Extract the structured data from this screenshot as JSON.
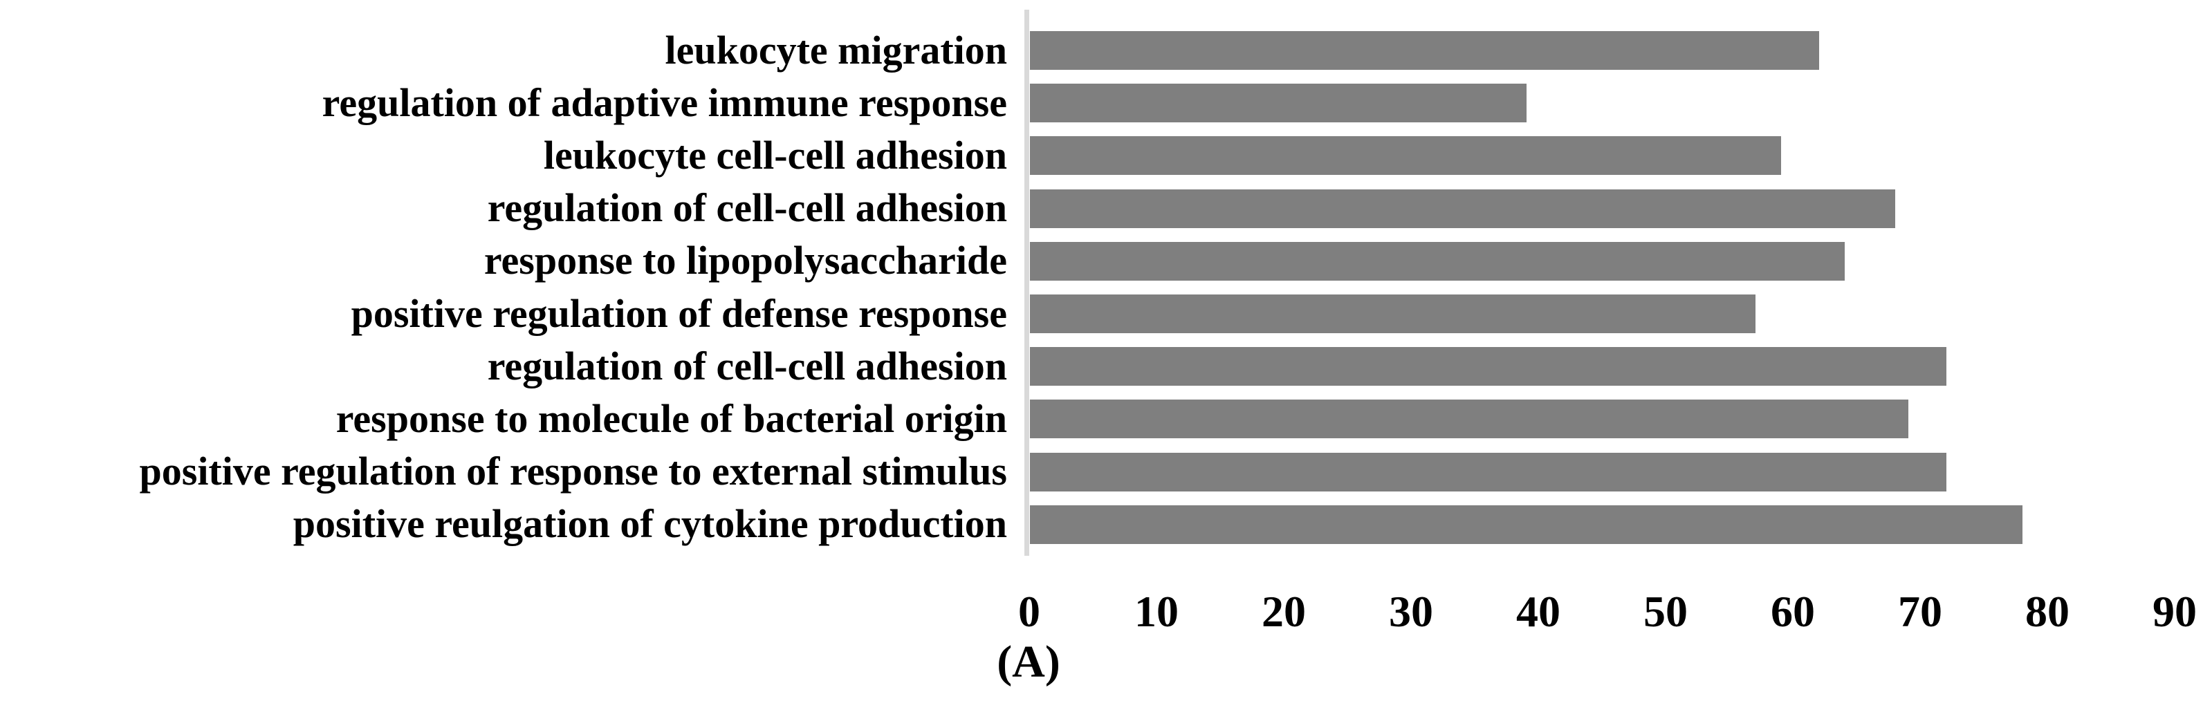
{
  "figure": {
    "caption": "(A)",
    "background": "#ffffff"
  },
  "chart_data": {
    "type": "bar",
    "orientation": "horizontal",
    "title": "",
    "xlabel": "",
    "ylabel": "",
    "categories": [
      "leukocyte migration",
      "regulation of adaptive immune response",
      "leukocyte cell-cell adhesion",
      "regulation of cell-cell adhesion",
      "response to lipopolysaccharide",
      "positive regulation of defense response",
      "regulation of cell-cell adhesion",
      "response to molecule of bacterial origin",
      "positive regulation of response to external stimulus",
      "positive reulgation of cytokine production"
    ],
    "values": [
      62,
      39,
      59,
      68,
      64,
      57,
      72,
      69,
      72,
      78
    ],
    "xlim": [
      0,
      90
    ],
    "xticks": [
      0,
      10,
      20,
      30,
      40,
      50,
      60,
      70,
      80,
      90
    ],
    "grid": false,
    "legend": false,
    "bar_color": "#7f7f7f",
    "axis_line_color": "#d9d9d9",
    "text_color": "#000000"
  }
}
